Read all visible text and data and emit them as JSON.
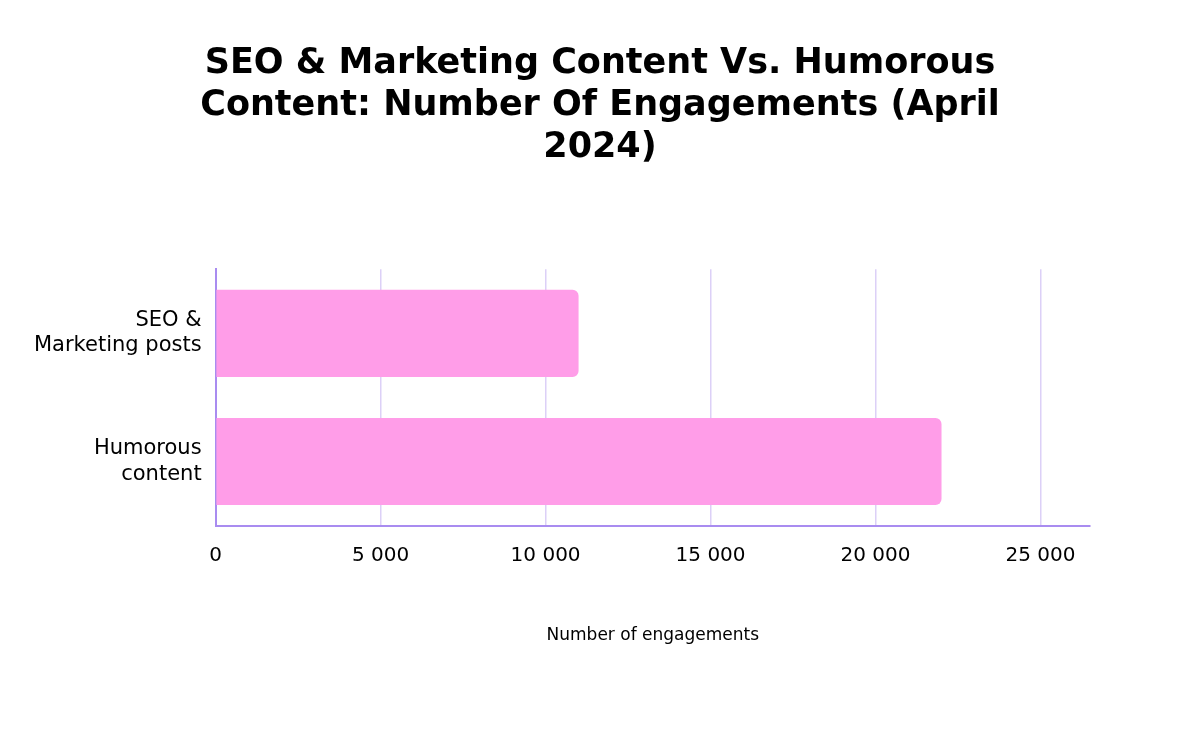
{
  "chart_data": {
    "type": "bar",
    "orientation": "horizontal",
    "title": "SEO & Marketing Content Vs. Humorous Content: Number Of Engagements (April 2024)",
    "xlabel": "Number of engagements",
    "categories": [
      "SEO &\nMarketing posts",
      "Humorous\ncontent"
    ],
    "values": [
      11000,
      22000
    ],
    "color": "#ff9de8",
    "xlim": [
      0,
      26500
    ],
    "xticks": [
      0,
      {
        "value": 5000,
        "label": "5 000"
      },
      {
        "value": 10000,
        "label": "10 000"
      },
      {
        "value": 15000,
        "label": "15 000"
      },
      {
        "value": 20000,
        "label": "20 000"
      },
      {
        "value": 25000,
        "label": "25 000"
      }
    ],
    "grid": "x",
    "legend": false
  }
}
